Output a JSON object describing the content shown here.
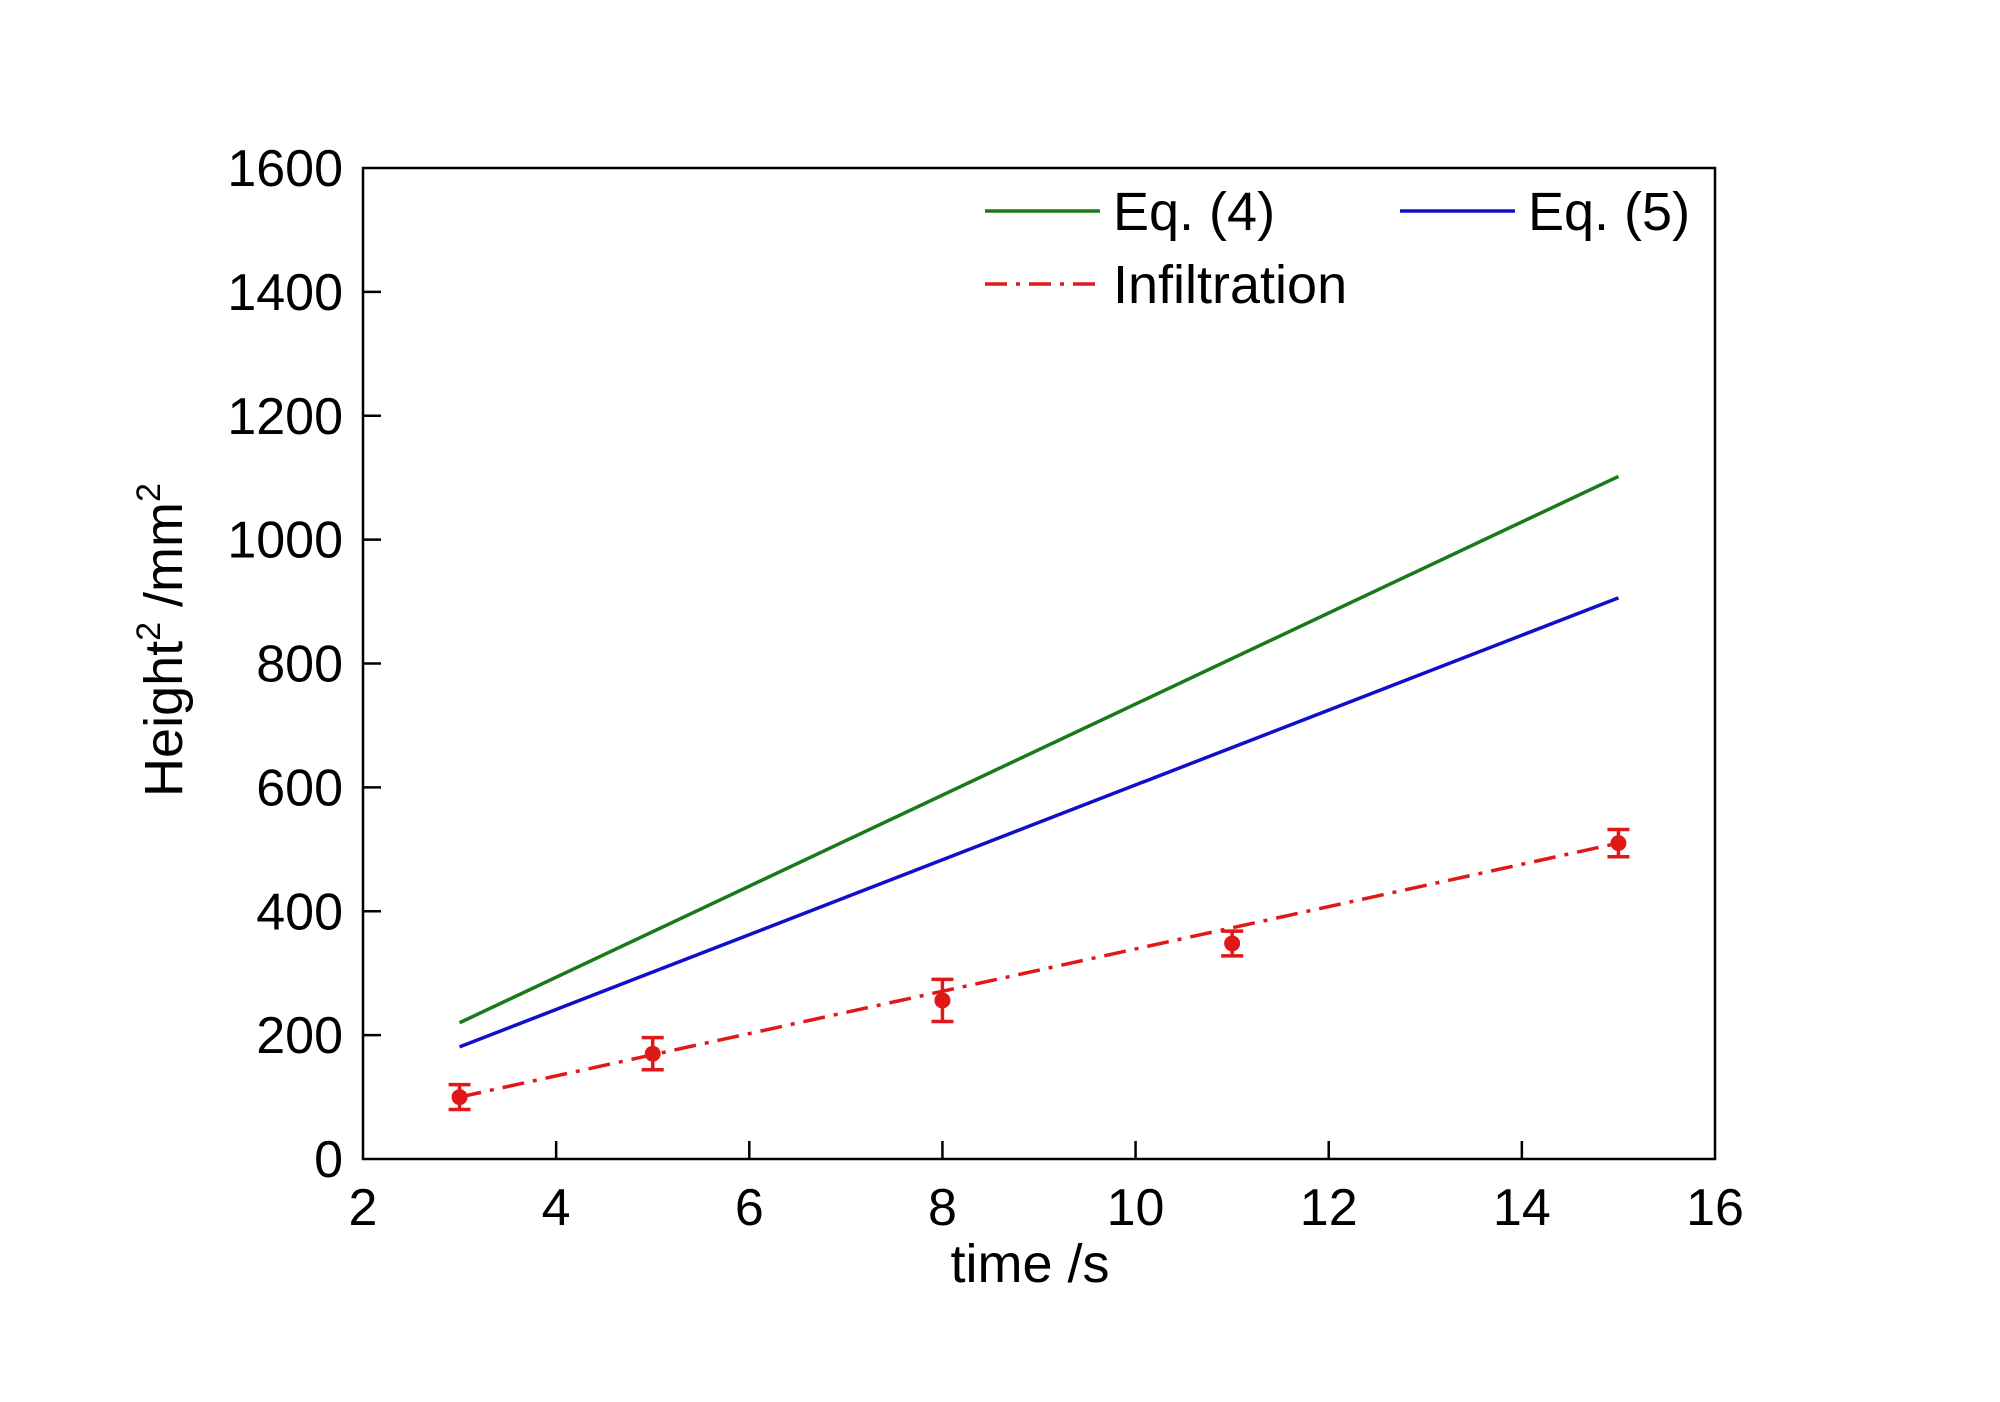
{
  "chart_data": {
    "type": "line",
    "xlabel": "time /s",
    "ylabel": {
      "main": "Height",
      "sup": "2",
      "unit": " /mm",
      "unit_sup": "2"
    },
    "xlim": [
      2,
      16
    ],
    "ylim": [
      0,
      1600
    ],
    "xticks": [
      2,
      4,
      6,
      8,
      10,
      12,
      14,
      16
    ],
    "yticks": [
      0,
      200,
      400,
      600,
      800,
      1000,
      1200,
      1400,
      1600
    ],
    "xtick_labels": [
      "2",
      "4",
      "6",
      "8",
      "10",
      "12",
      "14",
      "16"
    ],
    "ytick_labels": [
      "0",
      "200",
      "400",
      "600",
      "800",
      "1000",
      "1200",
      "1400",
      "1600"
    ],
    "grid": false,
    "legend_placement": "top-right",
    "series": [
      {
        "name": "Eq. (4)",
        "color": "#1a7a1a",
        "style": "solid",
        "x": [
          3,
          15
        ],
        "y": [
          220,
          1102
        ]
      },
      {
        "name": "Eq. (5)",
        "color": "#1010c8",
        "style": "solid",
        "x": [
          3,
          15
        ],
        "y": [
          181,
          906
        ]
      },
      {
        "name": "Infiltration",
        "color": "#e01818",
        "style": "dashdot",
        "x": [
          3,
          15
        ],
        "y": [
          100,
          510
        ]
      }
    ],
    "points": {
      "color": "#e01818",
      "x": [
        3,
        5,
        8,
        11,
        15
      ],
      "y": [
        100,
        170,
        256,
        348,
        510
      ],
      "err": [
        20,
        26,
        34,
        20,
        22
      ]
    }
  }
}
